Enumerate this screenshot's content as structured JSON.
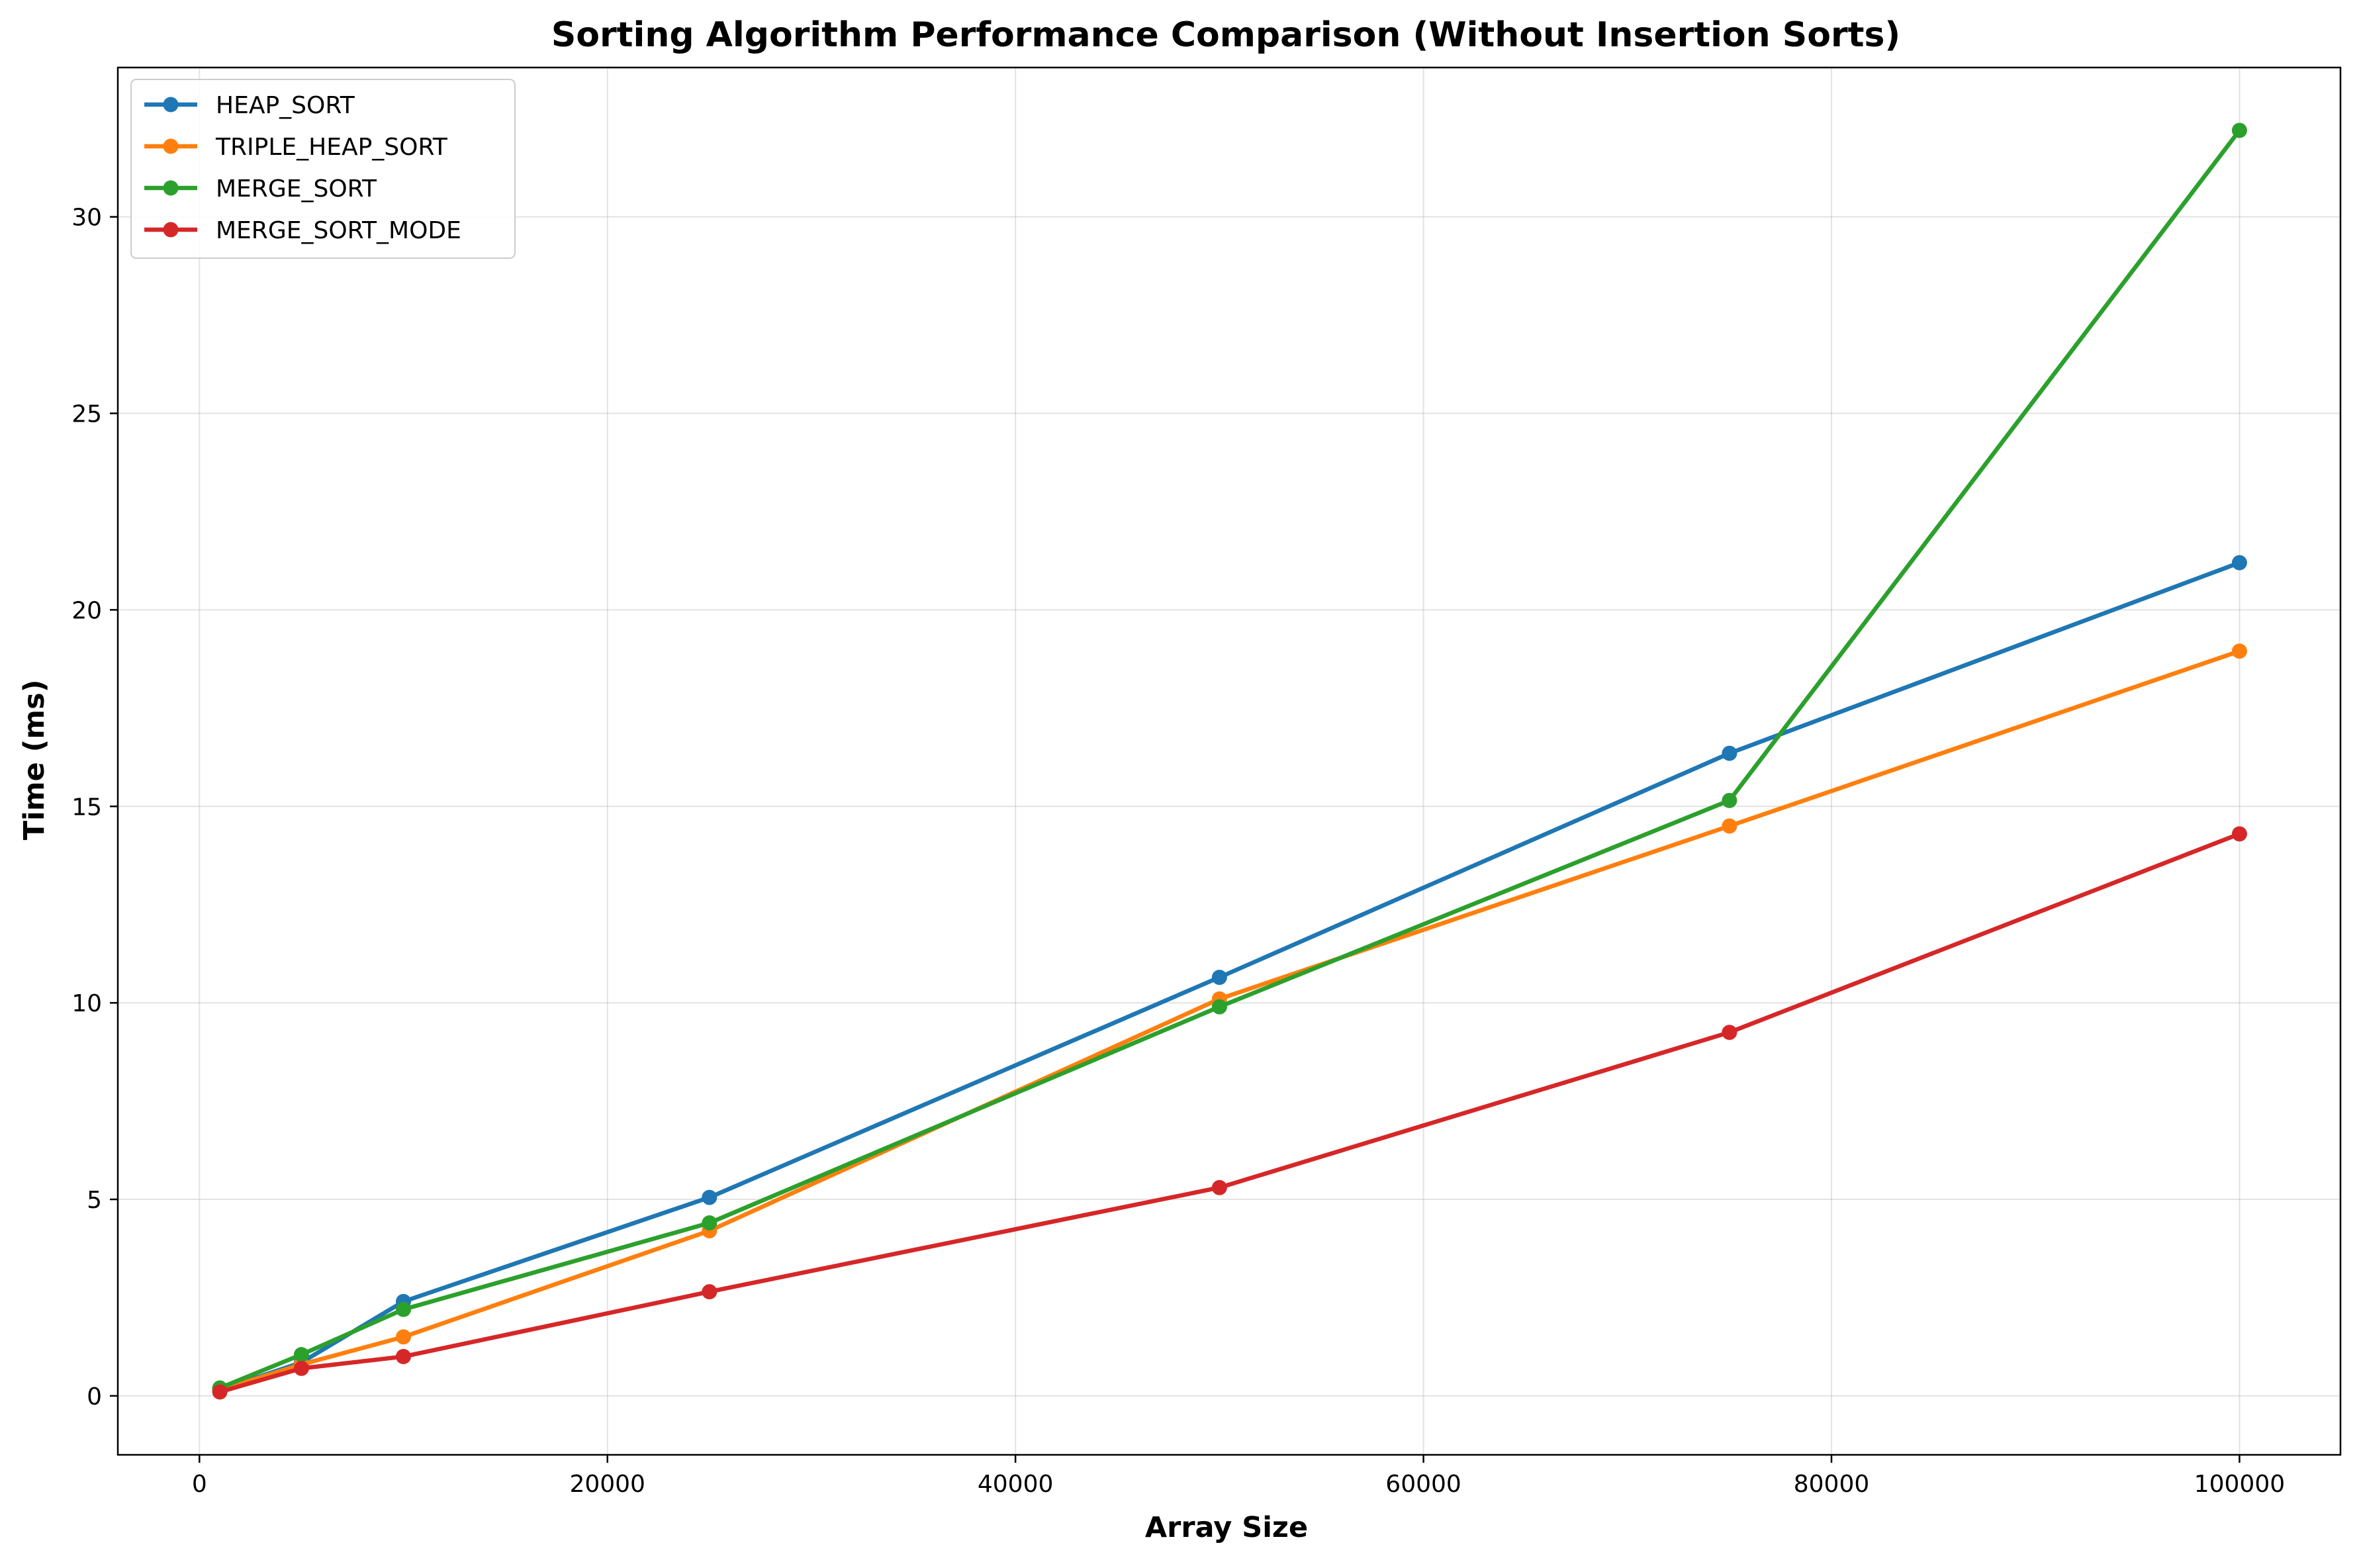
{
  "chart_data": {
    "type": "line",
    "title": "Sorting Algorithm Performance Comparison (Without Insertion Sorts)",
    "xlabel": "Array Size",
    "ylabel": "Time (ms)",
    "xlim": [
      -4000,
      104950
    ],
    "ylim": [
      -1.5,
      33.8
    ],
    "xticks": [
      0,
      20000,
      40000,
      60000,
      80000,
      100000
    ],
    "xtick_labels": [
      "0",
      "20000",
      "40000",
      "60000",
      "80000",
      "100000"
    ],
    "yticks": [
      0,
      5,
      10,
      15,
      20,
      25,
      30
    ],
    "ytick_labels": [
      "0",
      "5",
      "10",
      "15",
      "20",
      "25",
      "30"
    ],
    "grid": true,
    "legend_position": "upper-left",
    "x": [
      1000,
      5000,
      10000,
      25000,
      50000,
      75000,
      100000
    ],
    "series": [
      {
        "name": "HEAP_SORT",
        "color": "#1f77b4",
        "values": [
          0.15,
          0.85,
          2.4,
          5.05,
          10.65,
          16.35,
          21.2
        ]
      },
      {
        "name": "TRIPLE_HEAP_SORT",
        "color": "#ff7f0e",
        "values": [
          0.15,
          0.8,
          1.5,
          4.2,
          10.1,
          14.5,
          18.95
        ]
      },
      {
        "name": "MERGE_SORT",
        "color": "#2ca02c",
        "values": [
          0.2,
          1.05,
          2.2,
          4.4,
          9.9,
          15.15,
          32.2
        ]
      },
      {
        "name": "MERGE_SORT_MODE",
        "color": "#d62728",
        "values": [
          0.1,
          0.7,
          1.0,
          2.65,
          5.3,
          9.25,
          14.3
        ]
      }
    ]
  }
}
